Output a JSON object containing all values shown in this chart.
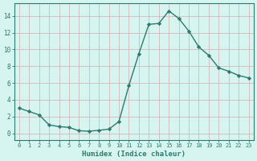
{
  "x": [
    0,
    1,
    2,
    3,
    4,
    5,
    6,
    7,
    8,
    9,
    10,
    11,
    12,
    13,
    14,
    15,
    16,
    17,
    18,
    19,
    20,
    21,
    22,
    23
  ],
  "y": [
    3.0,
    2.6,
    2.2,
    1.0,
    0.8,
    0.7,
    0.3,
    0.25,
    0.35,
    0.5,
    1.4,
    5.7,
    9.5,
    13.0,
    13.1,
    14.6,
    13.7,
    12.2,
    10.3,
    9.3,
    7.8,
    7.4,
    6.9,
    6.6
  ],
  "line_color": "#2d7a6e",
  "marker": "D",
  "markersize": 2.2,
  "linewidth": 1.0,
  "xlabel": "Humidex (Indice chaleur)",
  "xlim": [
    -0.5,
    23.5
  ],
  "ylim": [
    -0.8,
    15.5
  ],
  "yticks": [
    0,
    2,
    4,
    6,
    8,
    10,
    12,
    14
  ],
  "xtick_labels": [
    "0",
    "1",
    "2",
    "3",
    "4",
    "5",
    "6",
    "7",
    "8",
    "9",
    "10",
    "11",
    "12",
    "13",
    "14",
    "15",
    "16",
    "17",
    "18",
    "19",
    "20",
    "21",
    "22",
    "23"
  ],
  "bg_color": "#d7f5f0",
  "grid_color": "#c8ddd9",
  "axes_color": "#2d7a6e",
  "tick_color": "#2d7a6e",
  "label_color": "#2d7a6e"
}
